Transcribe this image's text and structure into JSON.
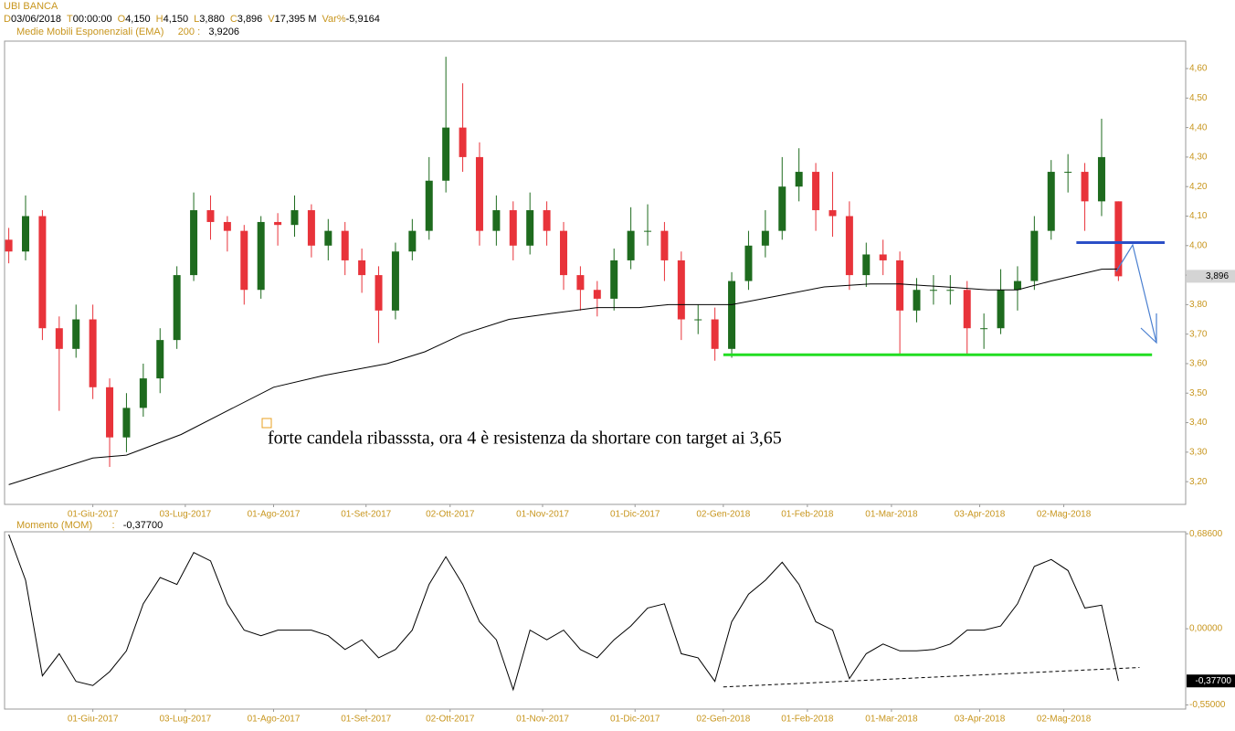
{
  "chart_data": [
    {
      "type": "candlestick",
      "title": "UBI BANCA",
      "info": [
        [
          "D",
          "03/06/2018"
        ],
        [
          "T",
          "00:00:00"
        ],
        [
          "O",
          "4,150"
        ],
        [
          "H",
          "4,150"
        ],
        [
          "L",
          "3,880"
        ],
        [
          "C",
          "3,896"
        ],
        [
          "V",
          "17,395 M"
        ],
        [
          "Var%",
          "-5,9164"
        ]
      ],
      "x": [
        0,
        4,
        8,
        12,
        16,
        20,
        24,
        28,
        32,
        36,
        40,
        44,
        48,
        52,
        56,
        60,
        64,
        68,
        72,
        76,
        80,
        84,
        88,
        92,
        96,
        100,
        104,
        108,
        112,
        116,
        120,
        124,
        128,
        132,
        136,
        140,
        144,
        148,
        152,
        156,
        160,
        164,
        168,
        172,
        176,
        180,
        184,
        188,
        192,
        196,
        200,
        204,
        208,
        212,
        216,
        220,
        224,
        228,
        232,
        236,
        240,
        244,
        248,
        252,
        256,
        260,
        264
      ],
      "open": [
        4.02,
        3.98,
        4.1,
        3.72,
        3.65,
        3.75,
        3.52,
        3.35,
        3.45,
        3.55,
        3.68,
        3.9,
        4.12,
        4.08,
        4.05,
        3.85,
        4.08,
        4.07,
        4.12,
        4.0,
        4.05,
        3.95,
        3.9,
        3.78,
        3.98,
        4.05,
        4.22,
        4.4,
        4.3,
        4.05,
        4.12,
        4.0,
        4.12,
        4.05,
        3.9,
        3.85,
        3.82,
        3.95,
        4.05,
        4.05,
        3.95,
        3.75,
        3.75,
        3.65,
        3.88,
        4.0,
        4.05,
        4.2,
        4.25,
        4.12,
        4.1,
        3.9,
        3.97,
        3.95,
        3.78,
        3.85,
        3.85,
        3.85,
        3.72,
        3.72,
        3.85,
        3.88,
        4.05,
        4.25,
        4.25,
        4.15,
        4.15
      ],
      "high": [
        4.06,
        4.17,
        4.12,
        3.76,
        3.8,
        3.8,
        3.55,
        3.5,
        3.6,
        3.72,
        3.93,
        4.18,
        4.17,
        4.1,
        4.07,
        4.1,
        4.11,
        4.17,
        4.14,
        4.09,
        4.08,
        3.99,
        3.93,
        4.01,
        4.09,
        4.3,
        4.64,
        4.55,
        4.35,
        4.17,
        4.15,
        4.18,
        4.15,
        4.08,
        3.93,
        3.88,
        3.99,
        4.13,
        4.14,
        4.08,
        3.98,
        3.8,
        3.79,
        3.91,
        4.05,
        4.12,
        4.3,
        4.33,
        4.28,
        4.25,
        4.15,
        4.01,
        4.02,
        3.98,
        3.89,
        3.9,
        3.9,
        3.88,
        3.77,
        3.92,
        3.93,
        4.1,
        4.29,
        4.31,
        4.28,
        4.43,
        4.15
      ],
      "low": [
        3.94,
        3.95,
        3.68,
        3.44,
        3.62,
        3.48,
        3.25,
        3.3,
        3.42,
        3.5,
        3.65,
        3.88,
        4.02,
        3.98,
        3.8,
        3.82,
        4.0,
        4.03,
        3.96,
        3.95,
        3.9,
        3.84,
        3.67,
        3.75,
        3.95,
        4.02,
        4.18,
        4.25,
        4.0,
        4.0,
        3.95,
        3.97,
        4.0,
        3.85,
        3.78,
        3.76,
        3.78,
        3.92,
        4.0,
        3.88,
        3.68,
        3.7,
        3.61,
        3.62,
        3.85,
        3.96,
        4.02,
        4.15,
        4.05,
        4.03,
        3.85,
        3.86,
        3.9,
        3.63,
        3.74,
        3.8,
        3.8,
        3.63,
        3.65,
        3.7,
        3.78,
        3.85,
        4.02,
        4.18,
        4.05,
        4.1,
        3.88
      ],
      "close": [
        3.98,
        4.1,
        3.72,
        3.65,
        3.75,
        3.52,
        3.35,
        3.45,
        3.55,
        3.68,
        3.9,
        4.12,
        4.08,
        4.05,
        3.85,
        4.08,
        4.07,
        4.12,
        4.0,
        4.05,
        3.95,
        3.9,
        3.78,
        3.98,
        4.05,
        4.22,
        4.4,
        4.3,
        4.05,
        4.12,
        4.0,
        4.12,
        4.05,
        3.9,
        3.85,
        3.82,
        3.95,
        4.05,
        4.05,
        3.95,
        3.75,
        3.75,
        3.65,
        3.88,
        4.0,
        4.05,
        4.2,
        4.25,
        4.12,
        4.1,
        3.9,
        3.97,
        3.95,
        3.78,
        3.85,
        3.85,
        3.85,
        3.72,
        3.72,
        3.85,
        3.88,
        4.05,
        4.25,
        4.25,
        4.15,
        4.3,
        3.896
      ],
      "up_color": "#1e6b1e",
      "down_color": "#e8333a",
      "overlay": {
        "name": "Medie Mobili Esponenziali (EMA)",
        "period": "200 :",
        "value_label": "3,9206",
        "color": "#000000",
        "x": [
          0,
          20,
          28,
          41,
          52,
          63,
          75,
          90,
          99,
          108,
          119,
          129,
          140,
          150,
          157,
          164,
          172,
          183,
          194,
          205,
          212,
          223,
          233,
          240,
          248,
          260,
          264
        ],
        "values": [
          3.19,
          3.28,
          3.29,
          3.36,
          3.44,
          3.52,
          3.56,
          3.6,
          3.64,
          3.7,
          3.75,
          3.77,
          3.79,
          3.79,
          3.8,
          3.8,
          3.8,
          3.83,
          3.86,
          3.87,
          3.87,
          3.86,
          3.85,
          3.85,
          3.88,
          3.92,
          3.9206
        ]
      },
      "levels": [
        {
          "x": [
            254,
            275
          ],
          "value": 4.01,
          "color": "#2b4fc7"
        },
        {
          "x": [
            170,
            272
          ],
          "value": 3.63,
          "color": "#22dd22"
        }
      ],
      "last": {
        "value": 3.896,
        "label": "3,896"
      },
      "annotation": "forte candela ribasssta, ora 4 è resistenza da shortare con target ai 3,65",
      "xlim": [
        -1,
        280
      ],
      "ylim": [
        3.123,
        4.693
      ],
      "xticks": [
        {
          "value": 20,
          "label": "01-Giu-2017"
        },
        {
          "value": 42,
          "label": "03-Lug-2017"
        },
        {
          "value": 63,
          "label": "01-Ago-2017"
        },
        {
          "value": 85,
          "label": "01-Set-2017"
        },
        {
          "value": 105,
          "label": "02-Ott-2017"
        },
        {
          "value": 127,
          "label": "01-Nov-2017"
        },
        {
          "value": 149,
          "label": "01-Dic-2017"
        },
        {
          "value": 170,
          "label": "02-Gen-2018"
        },
        {
          "value": 190,
          "label": "01-Feb-2018"
        },
        {
          "value": 210,
          "label": "01-Mar-2018"
        },
        {
          "value": 231,
          "label": "03-Apr-2018"
        },
        {
          "value": 251,
          "label": "02-Mag-2018"
        }
      ],
      "yticks": [
        {
          "value": 3.2,
          "label": "3,20"
        },
        {
          "value": 3.3,
          "label": "3,30"
        },
        {
          "value": 3.4,
          "label": "3,40"
        },
        {
          "value": 3.5,
          "label": "3,50"
        },
        {
          "value": 3.6,
          "label": "3,60"
        },
        {
          "value": 3.7,
          "label": "3,70"
        },
        {
          "value": 3.8,
          "label": "3,80"
        },
        {
          "value": 3.9,
          "label": "3,90"
        },
        {
          "value": 4.0,
          "label": "4,00"
        },
        {
          "value": 4.1,
          "label": "4,10"
        },
        {
          "value": 4.2,
          "label": "4,20"
        },
        {
          "value": 4.3,
          "label": "4,30"
        },
        {
          "value": 4.4,
          "label": "4,40"
        },
        {
          "value": 4.5,
          "label": "4,50"
        },
        {
          "value": 4.6,
          "label": "4,60"
        }
      ]
    },
    {
      "type": "line",
      "title": "Momento (MOM)",
      "separator": ":",
      "color": "#000000",
      "x": [
        0,
        4,
        8,
        12,
        16,
        20,
        24,
        28,
        32,
        36,
        40,
        44,
        48,
        52,
        56,
        60,
        64,
        68,
        72,
        76,
        80,
        84,
        88,
        92,
        96,
        100,
        104,
        108,
        112,
        116,
        120,
        124,
        128,
        132,
        136,
        140,
        144,
        148,
        152,
        156,
        160,
        164,
        168,
        172,
        176,
        180,
        184,
        188,
        192,
        196,
        200,
        204,
        208,
        212,
        216,
        220,
        224,
        228,
        232,
        236,
        240,
        244,
        248,
        252,
        256,
        260,
        264
      ],
      "values": [
        0.68,
        0.35,
        -0.34,
        -0.18,
        -0.38,
        -0.41,
        -0.31,
        -0.16,
        0.18,
        0.37,
        0.32,
        0.55,
        0.49,
        0.18,
        -0.01,
        -0.05,
        -0.01,
        -0.01,
        -0.01,
        -0.05,
        -0.15,
        -0.08,
        -0.21,
        -0.15,
        -0.01,
        0.32,
        0.52,
        0.32,
        0.05,
        -0.08,
        -0.44,
        -0.01,
        -0.08,
        -0.01,
        -0.15,
        -0.21,
        -0.08,
        0.02,
        0.15,
        0.18,
        -0.18,
        -0.21,
        -0.38,
        0.05,
        0.25,
        0.35,
        0.48,
        0.32,
        0.05,
        -0.01,
        -0.36,
        -0.18,
        -0.11,
        -0.16,
        -0.16,
        -0.15,
        -0.11,
        -0.01,
        -0.01,
        0.02,
        0.18,
        0.45,
        0.5,
        0.42,
        0.15,
        0.17,
        -0.377
      ],
      "trendline": {
        "x": [
          170,
          269
        ],
        "values": [
          -0.42,
          -0.28
        ]
      },
      "last": {
        "value": -0.377,
        "label": "-0,37700"
      },
      "xlim": [
        -1,
        280
      ],
      "ylim": [
        -0.58,
        0.7
      ],
      "xticks": [
        {
          "value": 20,
          "label": "01-Giu-2017"
        },
        {
          "value": 42,
          "label": "03-Lug-2017"
        },
        {
          "value": 63,
          "label": "01-Ago-2017"
        },
        {
          "value": 85,
          "label": "01-Set-2017"
        },
        {
          "value": 105,
          "label": "02-Ott-2017"
        },
        {
          "value": 127,
          "label": "01-Nov-2017"
        },
        {
          "value": 149,
          "label": "01-Dic-2017"
        },
        {
          "value": 170,
          "label": "02-Gen-2018"
        },
        {
          "value": 190,
          "label": "01-Feb-2018"
        },
        {
          "value": 210,
          "label": "01-Mar-2018"
        },
        {
          "value": 231,
          "label": "03-Apr-2018"
        },
        {
          "value": 251,
          "label": "02-Mag-2018"
        }
      ],
      "yticks": [
        {
          "value": 0.686,
          "label": "0,68600"
        },
        {
          "value": 0,
          "label": "0,00000"
        },
        {
          "value": -0.55,
          "label": "-0,55000"
        }
      ]
    }
  ]
}
